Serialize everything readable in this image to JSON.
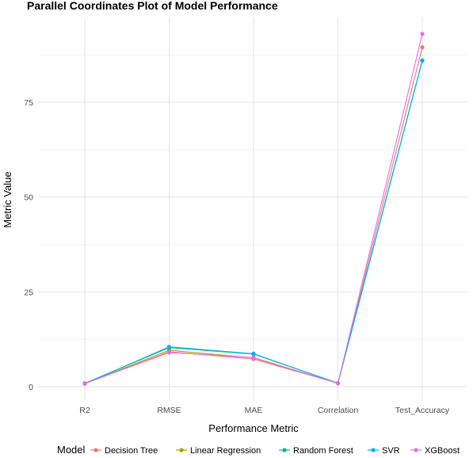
{
  "chart_data": {
    "type": "line",
    "title": "Parallel Coordinates Plot of Model Performance",
    "xlabel": "Performance Metric",
    "ylabel": "Metric Value",
    "categories": [
      "R2",
      "RMSE",
      "MAE",
      "Correlation",
      "Test_Accuracy"
    ],
    "yticks": [
      0,
      25,
      50,
      75
    ],
    "ylim": [
      -1,
      97
    ],
    "grid": true,
    "legend": {
      "title": "Model",
      "position": "bottom"
    },
    "series": [
      {
        "name": "Decision Tree",
        "color": "#F8766D",
        "values": [
          0.8,
          9.2,
          7.3,
          0.9,
          89.5
        ]
      },
      {
        "name": "Linear Regression",
        "color": "#A3A500",
        "values": [
          0.8,
          9.6,
          7.6,
          0.9,
          86.0
        ]
      },
      {
        "name": "Random Forest",
        "color": "#00BF7D",
        "values": [
          0.9,
          10.3,
          8.6,
          0.95,
          86.0
        ]
      },
      {
        "name": "SVR",
        "color": "#00B0F6",
        "values": [
          0.8,
          10.5,
          8.7,
          0.9,
          86.0
        ]
      },
      {
        "name": "XGBoost",
        "color": "#E76BF3",
        "values": [
          0.85,
          9.0,
          7.7,
          0.9,
          93.0
        ]
      }
    ]
  }
}
